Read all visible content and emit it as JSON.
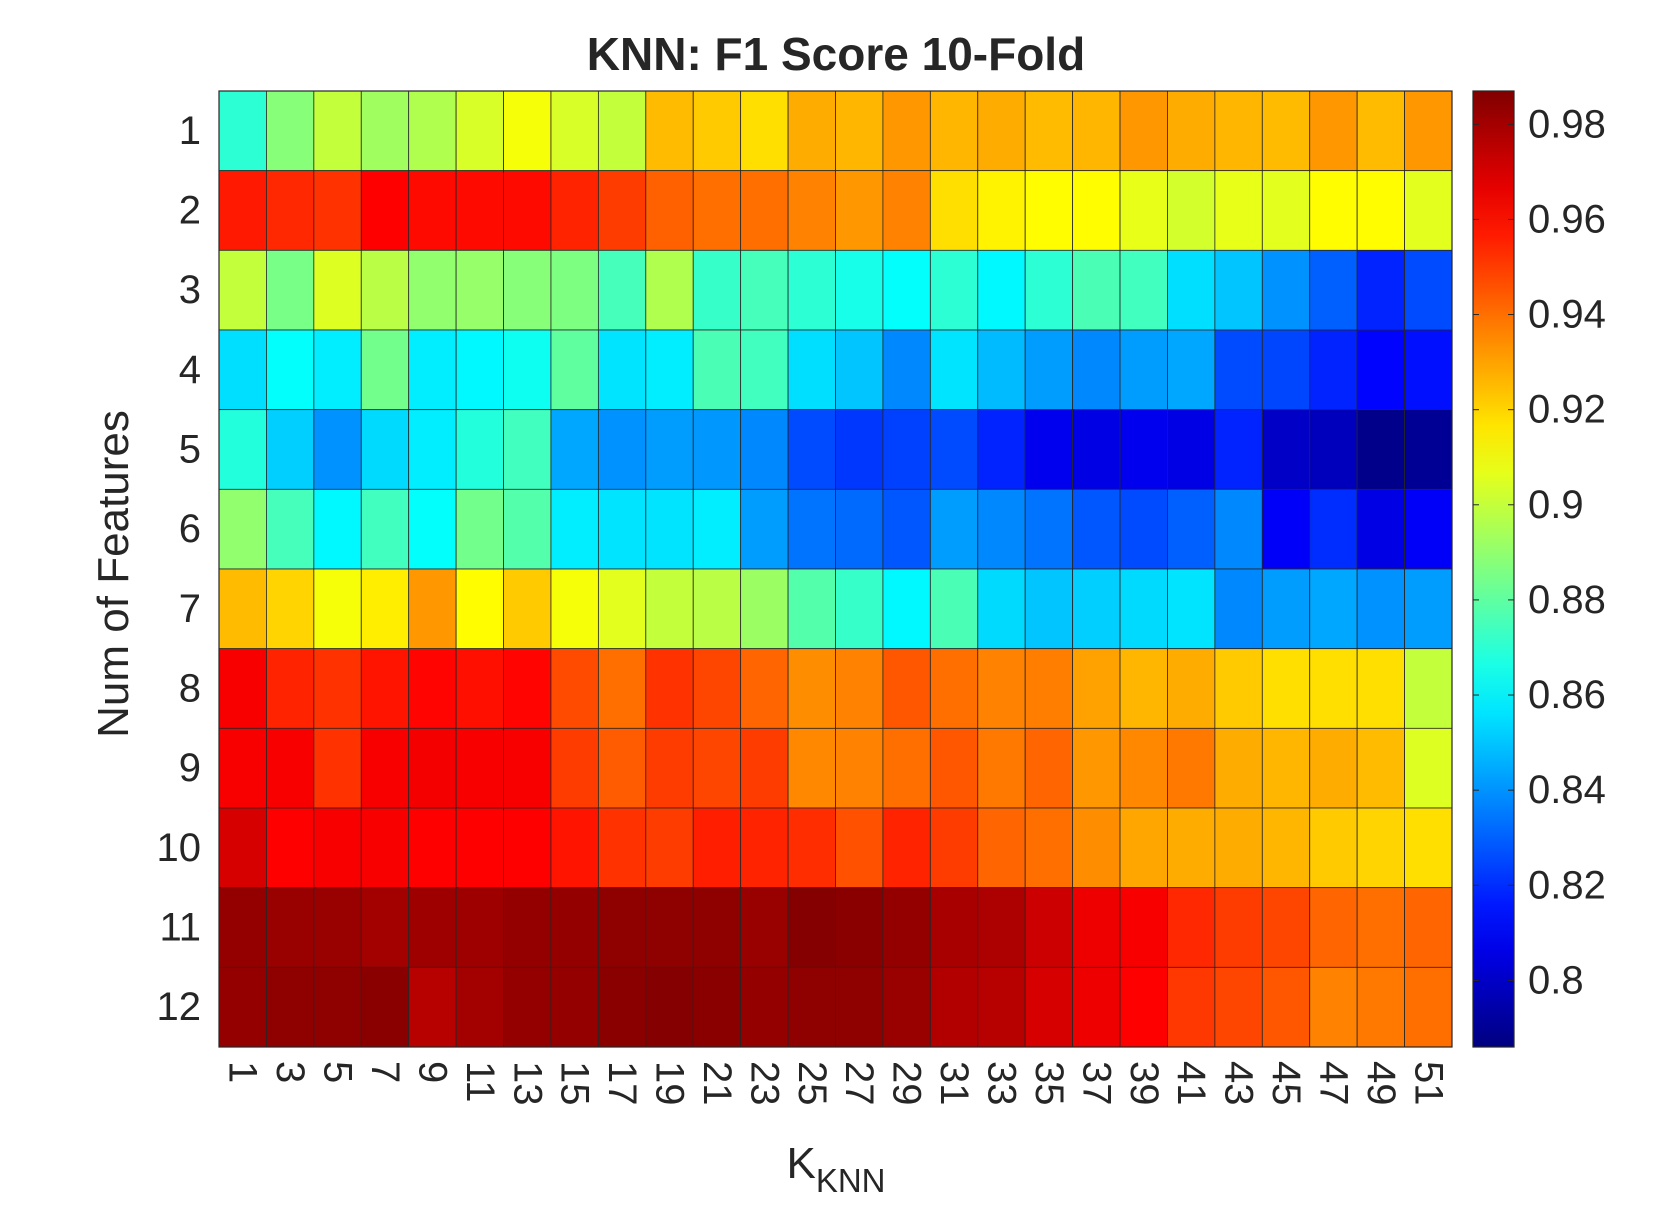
{
  "chart_data": {
    "type": "heatmap",
    "title": "KNN: F1 Score 10-Fold",
    "xlabel_main": "K",
    "xlabel_sub": "KNN",
    "ylabel": "Num of Features",
    "x": [
      1,
      3,
      5,
      7,
      9,
      11,
      13,
      15,
      17,
      19,
      21,
      23,
      25,
      27,
      29,
      31,
      33,
      35,
      37,
      39,
      41,
      43,
      45,
      47,
      49,
      51
    ],
    "y": [
      1,
      2,
      3,
      4,
      5,
      6,
      7,
      8,
      9,
      10,
      11,
      12
    ],
    "colormap": "jet",
    "clim": [
      0.786,
      0.987
    ],
    "colorbar_ticks": [
      0.8,
      0.82,
      0.84,
      0.86,
      0.88,
      0.9,
      0.92,
      0.94,
      0.96,
      0.98
    ],
    "colorbar_tick_labels": [
      "0.8",
      "0.82",
      "0.84",
      "0.86",
      "0.88",
      "0.9",
      "0.92",
      "0.94",
      "0.96",
      "0.98"
    ],
    "values": [
      [
        0.87,
        0.888,
        0.9,
        0.893,
        0.896,
        0.904,
        0.91,
        0.904,
        0.9,
        0.925,
        0.922,
        0.918,
        0.928,
        0.926,
        0.932,
        0.926,
        0.928,
        0.925,
        0.926,
        0.932,
        0.928,
        0.926,
        0.925,
        0.932,
        0.925,
        0.932
      ],
      [
        0.957,
        0.954,
        0.952,
        0.962,
        0.96,
        0.96,
        0.96,
        0.955,
        0.95,
        0.943,
        0.94,
        0.94,
        0.936,
        0.932,
        0.936,
        0.918,
        0.914,
        0.912,
        0.912,
        0.907,
        0.903,
        0.907,
        0.906,
        0.912,
        0.912,
        0.906
      ],
      [
        0.9,
        0.885,
        0.905,
        0.898,
        0.89,
        0.891,
        0.888,
        0.886,
        0.875,
        0.896,
        0.872,
        0.875,
        0.87,
        0.866,
        0.862,
        0.87,
        0.86,
        0.87,
        0.876,
        0.874,
        0.855,
        0.85,
        0.84,
        0.83,
        0.818,
        0.826
      ],
      [
        0.855,
        0.862,
        0.858,
        0.884,
        0.858,
        0.86,
        0.864,
        0.88,
        0.856,
        0.858,
        0.876,
        0.874,
        0.855,
        0.85,
        0.838,
        0.856,
        0.848,
        0.842,
        0.838,
        0.842,
        0.844,
        0.826,
        0.825,
        0.818,
        0.812,
        0.814
      ],
      [
        0.868,
        0.852,
        0.84,
        0.854,
        0.858,
        0.868,
        0.874,
        0.844,
        0.84,
        0.842,
        0.841,
        0.838,
        0.826,
        0.822,
        0.824,
        0.826,
        0.818,
        0.808,
        0.806,
        0.808,
        0.806,
        0.818,
        0.8,
        0.798,
        0.788,
        0.79
      ],
      [
        0.89,
        0.875,
        0.86,
        0.874,
        0.862,
        0.884,
        0.878,
        0.858,
        0.856,
        0.856,
        0.858,
        0.842,
        0.834,
        0.832,
        0.828,
        0.842,
        0.838,
        0.834,
        0.828,
        0.826,
        0.83,
        0.838,
        0.81,
        0.82,
        0.806,
        0.81
      ],
      [
        0.925,
        0.92,
        0.91,
        0.915,
        0.932,
        0.912,
        0.922,
        0.91,
        0.906,
        0.9,
        0.898,
        0.892,
        0.878,
        0.872,
        0.86,
        0.876,
        0.854,
        0.85,
        0.852,
        0.854,
        0.856,
        0.838,
        0.842,
        0.844,
        0.84,
        0.842
      ],
      [
        0.963,
        0.955,
        0.952,
        0.958,
        0.961,
        0.959,
        0.961,
        0.947,
        0.94,
        0.952,
        0.948,
        0.942,
        0.934,
        0.936,
        0.945,
        0.94,
        0.936,
        0.937,
        0.93,
        0.926,
        0.928,
        0.922,
        0.918,
        0.918,
        0.918,
        0.9
      ],
      [
        0.963,
        0.963,
        0.952,
        0.963,
        0.964,
        0.963,
        0.963,
        0.95,
        0.944,
        0.95,
        0.948,
        0.95,
        0.935,
        0.936,
        0.94,
        0.945,
        0.938,
        0.942,
        0.932,
        0.935,
        0.938,
        0.928,
        0.926,
        0.928,
        0.925,
        0.905
      ],
      [
        0.97,
        0.962,
        0.963,
        0.963,
        0.962,
        0.962,
        0.962,
        0.958,
        0.952,
        0.95,
        0.956,
        0.955,
        0.953,
        0.946,
        0.955,
        0.95,
        0.942,
        0.94,
        0.934,
        0.929,
        0.928,
        0.928,
        0.926,
        0.922,
        0.92,
        0.918
      ],
      [
        0.983,
        0.982,
        0.982,
        0.98,
        0.981,
        0.981,
        0.983,
        0.983,
        0.984,
        0.984,
        0.984,
        0.982,
        0.986,
        0.985,
        0.983,
        0.979,
        0.978,
        0.972,
        0.965,
        0.963,
        0.954,
        0.95,
        0.948,
        0.942,
        0.94,
        0.942
      ],
      [
        0.983,
        0.984,
        0.984,
        0.985,
        0.976,
        0.98,
        0.983,
        0.983,
        0.985,
        0.986,
        0.985,
        0.983,
        0.984,
        0.984,
        0.982,
        0.977,
        0.976,
        0.97,
        0.965,
        0.962,
        0.951,
        0.948,
        0.945,
        0.936,
        0.938,
        0.94
      ]
    ]
  }
}
